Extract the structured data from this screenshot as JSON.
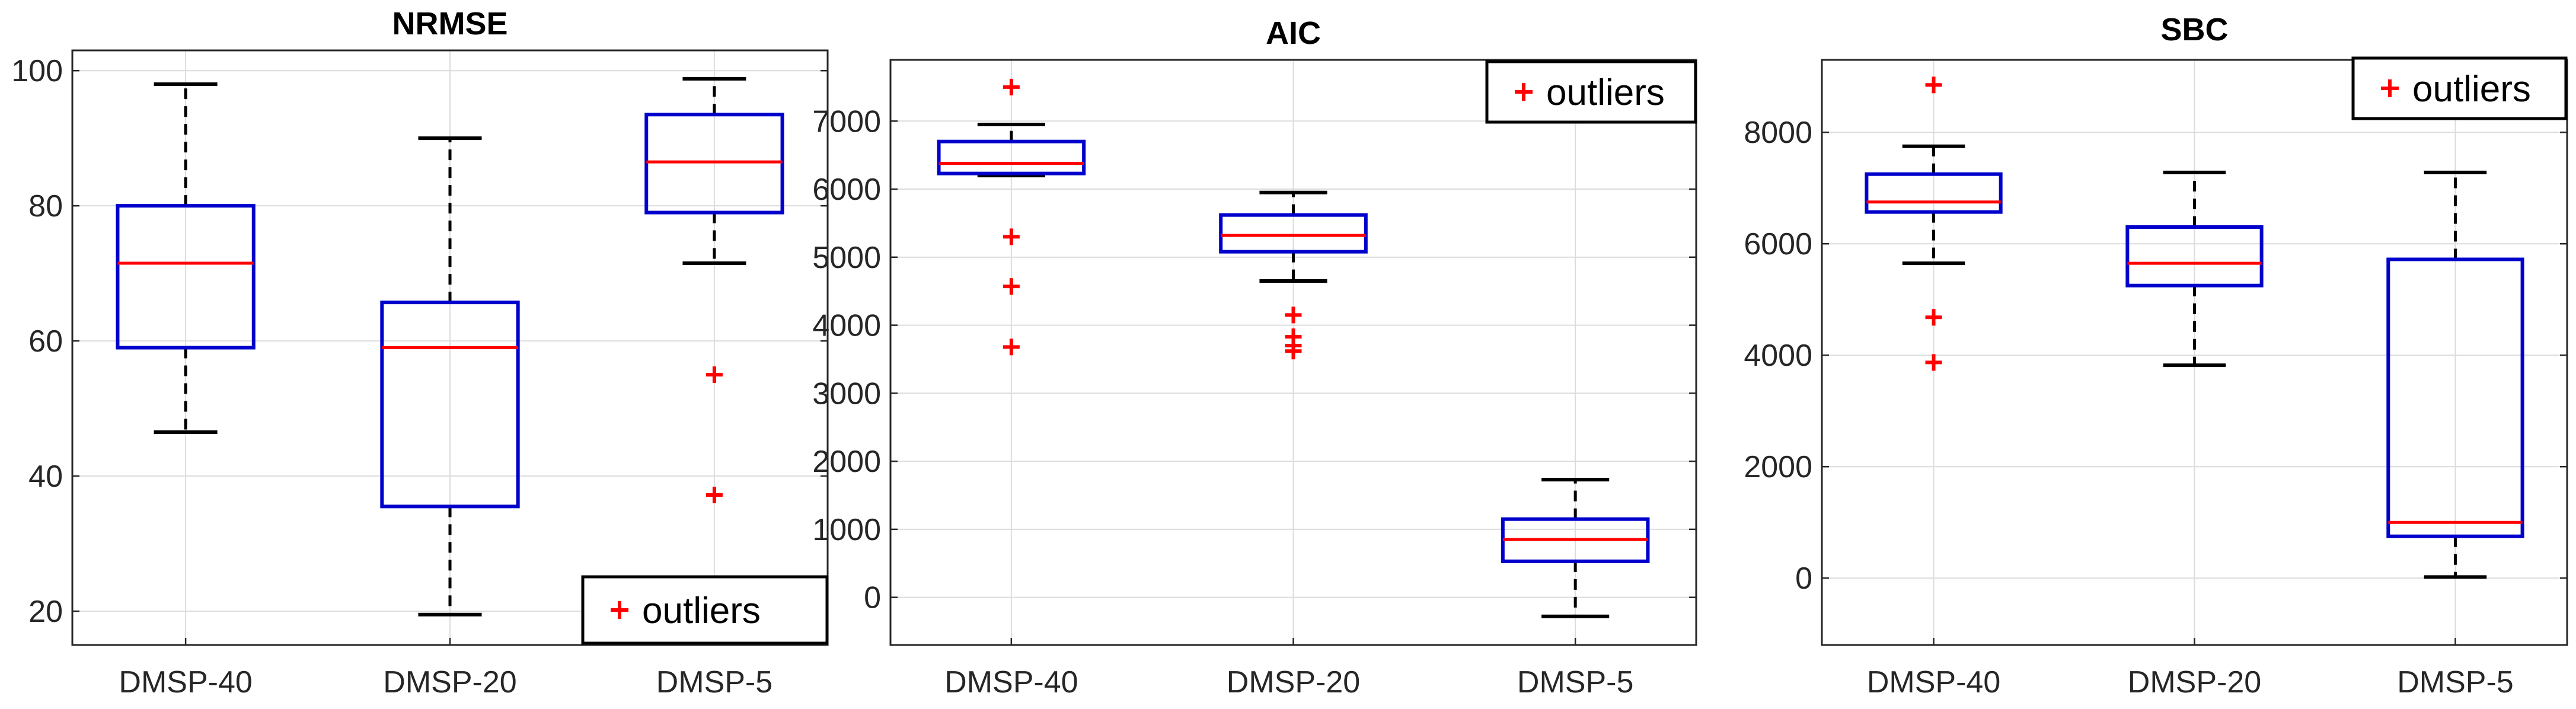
{
  "chart_data": [
    {
      "type": "box",
      "title": "NRMSE",
      "categories": [
        "DMSP-40",
        "DMSP-20",
        "DMSP-5"
      ],
      "ylim": [
        15,
        103
      ],
      "yticks": [
        20,
        40,
        60,
        80,
        100
      ],
      "grid": true,
      "legend": {
        "label": "outliers",
        "marker": "+",
        "placement": "bottom-right"
      },
      "boxes": [
        {
          "name": "DMSP-40",
          "min": 46.5,
          "q1": 59,
          "median": 71.5,
          "q3": 80,
          "max": 98,
          "outliers": []
        },
        {
          "name": "DMSP-20",
          "min": 19.5,
          "q1": 35.5,
          "median": 59,
          "q3": 65.7,
          "max": 90,
          "outliers": []
        },
        {
          "name": "DMSP-5",
          "min": 71.5,
          "q1": 79,
          "median": 86.5,
          "q3": 93.5,
          "max": 98.8,
          "outliers": [
            55,
            37.2
          ]
        }
      ]
    },
    {
      "type": "box",
      "title": "AIC",
      "categories": [
        "DMSP-40",
        "DMSP-20",
        "DMSP-5"
      ],
      "ylim": [
        -700,
        7900
      ],
      "yticks": [
        0,
        1000,
        2000,
        3000,
        4000,
        5000,
        6000,
        7000
      ],
      "grid": true,
      "legend": {
        "label": "outliers",
        "marker": "+",
        "placement": "top-right"
      },
      "boxes": [
        {
          "name": "DMSP-40",
          "min": 6200,
          "q1": 6230,
          "median": 6380,
          "q3": 6700,
          "max": 6950,
          "outliers": [
            7500,
            5300,
            4570,
            3680
          ]
        },
        {
          "name": "DMSP-20",
          "min": 4650,
          "q1": 5080,
          "median": 5320,
          "q3": 5620,
          "max": 5950,
          "outliers": [
            4150,
            3830,
            3700,
            3620
          ]
        },
        {
          "name": "DMSP-5",
          "min": -280,
          "q1": 530,
          "median": 850,
          "q3": 1150,
          "max": 1730,
          "outliers": []
        }
      ]
    },
    {
      "type": "box",
      "title": "SBC",
      "categories": [
        "DMSP-40",
        "DMSP-20",
        "DMSP-5"
      ],
      "ylim": [
        -1200,
        9300
      ],
      "yticks": [
        0,
        2000,
        4000,
        6000,
        8000
      ],
      "grid": true,
      "legend": {
        "label": "outliers",
        "marker": "+",
        "placement": "top-right"
      },
      "boxes": [
        {
          "name": "DMSP-40",
          "min": 5650,
          "q1": 6570,
          "median": 6750,
          "q3": 7250,
          "max": 7750,
          "outliers": [
            8850,
            4680,
            3870
          ]
        },
        {
          "name": "DMSP-20",
          "min": 3820,
          "q1": 5250,
          "median": 5650,
          "q3": 6300,
          "max": 7280,
          "outliers": []
        },
        {
          "name": "DMSP-5",
          "min": 20,
          "q1": 750,
          "median": 1000,
          "q3": 5720,
          "max": 7280,
          "outliers": []
        }
      ]
    }
  ],
  "colors": {
    "box": "#0000cc",
    "median": "#ff0000",
    "outlier": "#ff0000",
    "whisker": "#000000",
    "grid": "#dcdcdc",
    "axis": "#262626"
  }
}
